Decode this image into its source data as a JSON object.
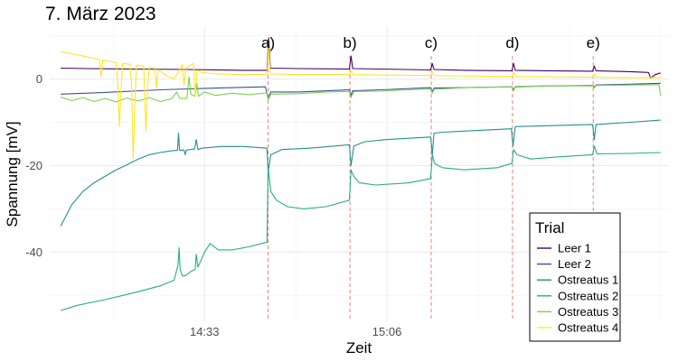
{
  "chart_data": {
    "type": "line",
    "title": "7. März 2023",
    "xlabel": "Zeit",
    "ylabel": "Spannung [mV]",
    "x_ticks": [
      {
        "label": "14:33",
        "minute": 33
      },
      {
        "label": "15:06",
        "minute": 66
      }
    ],
    "x_unit": "minutes after 14:00",
    "xlim": [
      5,
      117
    ],
    "ylim": [
      -56,
      12
    ],
    "y_ticks": [
      0,
      -20,
      -40
    ],
    "grid": true,
    "legend": {
      "title": "Trial",
      "position": "bottom-right"
    },
    "annotations": [
      {
        "label": "a)",
        "minute": 44.5
      },
      {
        "label": "b)",
        "minute": 59.3
      },
      {
        "label": "c)",
        "minute": 74.0
      },
      {
        "label": "d)",
        "minute": 88.7
      },
      {
        "label": "e)",
        "minute": 103.3
      }
    ],
    "series": [
      {
        "name": "Leer 1",
        "color": "#440154",
        "points": [
          [
            7,
            2.5
          ],
          [
            12,
            2.4
          ],
          [
            20,
            2.3
          ],
          [
            30,
            2.2
          ],
          [
            40,
            2.0
          ],
          [
            44.3,
            2.0
          ],
          [
            44.6,
            9.5
          ],
          [
            44.9,
            2.5
          ],
          [
            50,
            2.4
          ],
          [
            59.2,
            2.3
          ],
          [
            59.5,
            5.3
          ],
          [
            59.8,
            2.4
          ],
          [
            65,
            2.3
          ],
          [
            73.9,
            2.1
          ],
          [
            74.2,
            3.6
          ],
          [
            74.5,
            2.2
          ],
          [
            80,
            2.0
          ],
          [
            88.6,
            1.9
          ],
          [
            88.9,
            3.6
          ],
          [
            89.2,
            2.0
          ],
          [
            95,
            1.9
          ],
          [
            103.2,
            1.8
          ],
          [
            103.5,
            3.0
          ],
          [
            103.8,
            1.9
          ],
          [
            110,
            1.7
          ],
          [
            113.3,
            1.5
          ],
          [
            113.7,
            0.2
          ],
          [
            114.5,
            1.0
          ],
          [
            115.5,
            1.4
          ]
        ]
      },
      {
        "name": "Leer 2",
        "color": "#3b528b",
        "points": [
          [
            7,
            -3.5
          ],
          [
            15,
            -3.1
          ],
          [
            25,
            -2.5
          ],
          [
            35,
            -2.1
          ],
          [
            44,
            -1.8
          ],
          [
            44.5,
            -4.4
          ],
          [
            45,
            -3.0
          ],
          [
            50,
            -3.0
          ],
          [
            59.2,
            -2.5
          ],
          [
            59.5,
            -3.8
          ],
          [
            59.8,
            -2.7
          ],
          [
            65,
            -2.5
          ],
          [
            73.9,
            -2.0
          ],
          [
            74.2,
            -2.9
          ],
          [
            74.5,
            -2.1
          ],
          [
            80,
            -2.0
          ],
          [
            88.6,
            -1.8
          ],
          [
            88.9,
            -2.4
          ],
          [
            89.2,
            -1.8
          ],
          [
            95,
            -1.6
          ],
          [
            103.2,
            -1.5
          ],
          [
            103.5,
            -1.9
          ],
          [
            103.8,
            -1.4
          ],
          [
            110,
            -1.2
          ],
          [
            115.5,
            -1.0
          ]
        ]
      },
      {
        "name": "Ostreatus 1",
        "color": "#21908d",
        "points": [
          [
            7,
            -34
          ],
          [
            9,
            -29
          ],
          [
            11,
            -26
          ],
          [
            13,
            -24
          ],
          [
            15,
            -22.5
          ],
          [
            17,
            -21
          ],
          [
            19,
            -19.8
          ],
          [
            21,
            -18.5
          ],
          [
            23,
            -17.5
          ],
          [
            25,
            -17
          ],
          [
            27,
            -16.6
          ],
          [
            28.1,
            -16.5
          ],
          [
            28.3,
            -12.5
          ],
          [
            28.5,
            -16.5
          ],
          [
            29.3,
            -16.4
          ],
          [
            29.5,
            -17.5
          ],
          [
            29.7,
            -16.4
          ],
          [
            31.2,
            -16.2
          ],
          [
            31.5,
            -14
          ],
          [
            31.8,
            -16.3
          ],
          [
            32.5,
            -16
          ],
          [
            36,
            -15.6
          ],
          [
            40,
            -15.6
          ],
          [
            44.3,
            -16
          ],
          [
            44.5,
            -21.5
          ],
          [
            45,
            -17.5
          ],
          [
            47,
            -16.3
          ],
          [
            52,
            -16
          ],
          [
            59.2,
            -15.2
          ],
          [
            59.5,
            -20
          ],
          [
            60,
            -15.5
          ],
          [
            62,
            -14.5
          ],
          [
            66,
            -14
          ],
          [
            73.9,
            -13.4
          ],
          [
            74.2,
            -17.5
          ],
          [
            74.5,
            -12.5
          ],
          [
            76,
            -12.3
          ],
          [
            88.5,
            -11.5
          ],
          [
            88.8,
            -15.5
          ],
          [
            89.2,
            -11
          ],
          [
            95,
            -10.8
          ],
          [
            103.2,
            -10.5
          ],
          [
            103.5,
            -14
          ],
          [
            103.8,
            -10.5
          ],
          [
            110,
            -10
          ],
          [
            115.5,
            -9.5
          ]
        ]
      },
      {
        "name": "Ostreatus 2",
        "color": "#27ad81",
        "points": [
          [
            7,
            -53.5
          ],
          [
            10,
            -52.3
          ],
          [
            15,
            -51
          ],
          [
            20,
            -49.5
          ],
          [
            25,
            -47.8
          ],
          [
            27.5,
            -46.5
          ],
          [
            28.2,
            -43
          ],
          [
            28.4,
            -39
          ],
          [
            28.6,
            -44
          ],
          [
            29,
            -45.5
          ],
          [
            29.5,
            -45.5
          ],
          [
            30.5,
            -44.5
          ],
          [
            31.3,
            -44
          ],
          [
            31.5,
            -40.5
          ],
          [
            31.8,
            -43.5
          ],
          [
            33,
            -40
          ],
          [
            34,
            -38
          ],
          [
            35.5,
            -39.5
          ],
          [
            38,
            -39.5
          ],
          [
            41,
            -38.8
          ],
          [
            44.3,
            -37.7
          ],
          [
            44.5,
            -20.5
          ],
          [
            45,
            -26
          ],
          [
            46,
            -28
          ],
          [
            48,
            -29.5
          ],
          [
            51,
            -30
          ],
          [
            55,
            -29.5
          ],
          [
            59.2,
            -28
          ],
          [
            59.5,
            -21
          ],
          [
            60,
            -22.5
          ],
          [
            61,
            -24
          ],
          [
            64,
            -24.5
          ],
          [
            70,
            -24
          ],
          [
            73.9,
            -23
          ],
          [
            74.2,
            -17.5
          ],
          [
            74.6,
            -19.5
          ],
          [
            76,
            -20.5
          ],
          [
            80,
            -21
          ],
          [
            86,
            -20.5
          ],
          [
            88.6,
            -19.5
          ],
          [
            88.9,
            -16.3
          ],
          [
            89.5,
            -17.5
          ],
          [
            92,
            -18.5
          ],
          [
            97,
            -18
          ],
          [
            103.2,
            -17.5
          ],
          [
            103.5,
            -15.5
          ],
          [
            104,
            -17.3
          ],
          [
            110,
            -17.2
          ],
          [
            115.5,
            -17
          ]
        ]
      },
      {
        "name": "Ostreatus 3",
        "color": "#7ad151",
        "points": [
          [
            7,
            -4.2
          ],
          [
            9,
            -5
          ],
          [
            11,
            -4.3
          ],
          [
            13,
            -5.2
          ],
          [
            15,
            -4.5
          ],
          [
            17,
            -5.3
          ],
          [
            19,
            -4.4
          ],
          [
            21,
            -5.1
          ],
          [
            23,
            -4.3
          ],
          [
            25,
            -5.2
          ],
          [
            27,
            -4.6
          ],
          [
            28,
            -3
          ],
          [
            28.5,
            -4.5
          ],
          [
            29.8,
            -4.5
          ],
          [
            30.2,
            0.5
          ],
          [
            30.5,
            -3.5
          ],
          [
            31.3,
            -4
          ],
          [
            31.6,
            -1
          ],
          [
            31.9,
            -4
          ],
          [
            33,
            -3
          ],
          [
            35,
            -3.8
          ],
          [
            38,
            -3.3
          ],
          [
            41,
            -3.6
          ],
          [
            44.3,
            -3.2
          ],
          [
            44.5,
            -4.8
          ],
          [
            45,
            -3.5
          ],
          [
            50,
            -3.4
          ],
          [
            55,
            -3.0
          ],
          [
            59.2,
            -2.9
          ],
          [
            59.5,
            -4.3
          ],
          [
            60,
            -2.9
          ],
          [
            65,
            -2.8
          ],
          [
            70,
            -2.5
          ],
          [
            73.9,
            -2.3
          ],
          [
            74.2,
            -3.3
          ],
          [
            74.5,
            -2.4
          ],
          [
            80,
            -2.0
          ],
          [
            88.6,
            -1.8
          ],
          [
            88.9,
            -2.8
          ],
          [
            89.2,
            -1.7
          ],
          [
            95,
            -1.6
          ],
          [
            103.2,
            -1.6
          ],
          [
            103.5,
            -2.1
          ],
          [
            103.8,
            -1.5
          ],
          [
            110,
            -1.4
          ],
          [
            115.2,
            -1.3
          ],
          [
            115.5,
            -4.0
          ]
        ]
      },
      {
        "name": "Ostreatus 4",
        "color": "#fde725",
        "points": [
          [
            7,
            6.3
          ],
          [
            9,
            5.8
          ],
          [
            11,
            5.3
          ],
          [
            13,
            4.8
          ],
          [
            14,
            4.5
          ],
          [
            14.3,
            0.5
          ],
          [
            14.6,
            4.4
          ],
          [
            16,
            4.0
          ],
          [
            17,
            3.8
          ],
          [
            17.3,
            -1
          ],
          [
            17.6,
            -11
          ],
          [
            17.9,
            -3
          ],
          [
            18.2,
            3.6
          ],
          [
            19.5,
            3.4
          ],
          [
            19.8,
            -1
          ],
          [
            20.1,
            -18.5
          ],
          [
            20.4,
            -6
          ],
          [
            20.7,
            3.2
          ],
          [
            22,
            2.9
          ],
          [
            22.4,
            -12
          ],
          [
            22.7,
            -2
          ],
          [
            23,
            2.7
          ],
          [
            24,
            2.5
          ],
          [
            24.3,
            -2
          ],
          [
            24.6,
            2.2
          ],
          [
            25.5,
            1.3
          ],
          [
            26.5,
            0.5
          ],
          [
            27.5,
            0.0
          ],
          [
            28.5,
            2.0
          ],
          [
            29,
            3.3
          ],
          [
            29.3,
            -1.5
          ],
          [
            29.6,
            2.5
          ],
          [
            31,
            3.6
          ],
          [
            31.3,
            -4
          ],
          [
            31.6,
            2
          ],
          [
            32.5,
            1.5
          ],
          [
            35,
            1.2
          ],
          [
            40,
            1.0
          ],
          [
            44.3,
            1.0
          ],
          [
            44.6,
            7.5
          ],
          [
            44.9,
            1.2
          ],
          [
            50,
            1.0
          ],
          [
            59.2,
            1.0
          ],
          [
            59.5,
            2.0
          ],
          [
            59.8,
            1.0
          ],
          [
            65,
            0.9
          ],
          [
            73.9,
            0.8
          ],
          [
            74.2,
            1.6
          ],
          [
            74.5,
            0.8
          ],
          [
            80,
            0.7
          ],
          [
            88.6,
            0.6
          ],
          [
            88.9,
            1.5
          ],
          [
            89.2,
            0.6
          ],
          [
            95,
            0.5
          ],
          [
            103.2,
            0.4
          ],
          [
            103.5,
            1.2
          ],
          [
            103.8,
            0.4
          ],
          [
            110,
            0.3
          ],
          [
            115.5,
            0.3
          ]
        ]
      }
    ]
  }
}
